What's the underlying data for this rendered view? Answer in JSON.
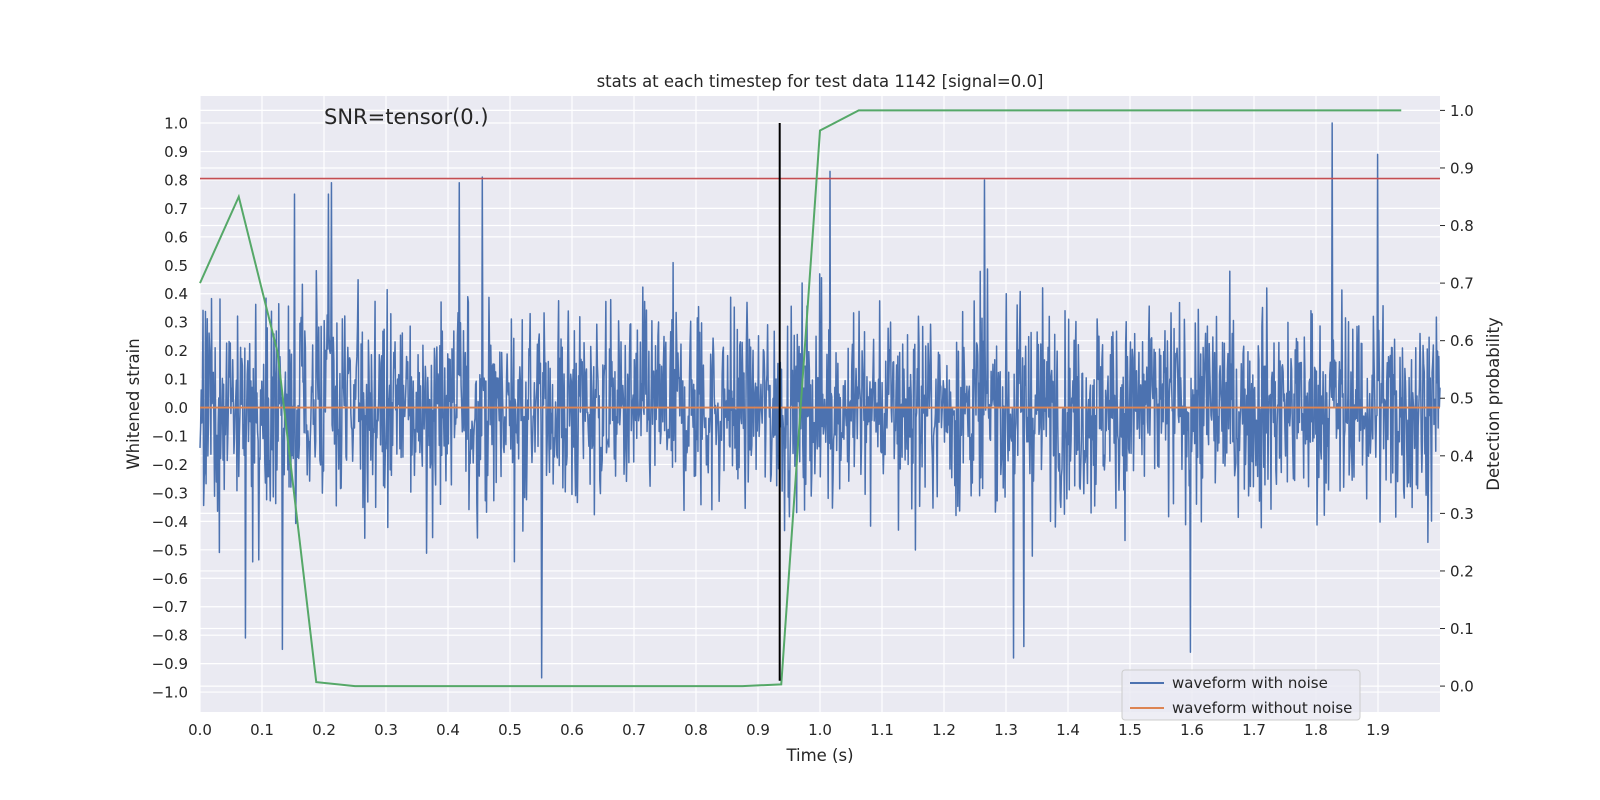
{
  "chart_data": {
    "type": "line",
    "title": "stats at each timestep for test data 1142 [signal=0.0]",
    "annotation": "SNR=tensor(0.)",
    "xlabel": "Time (s)",
    "ylabel_left": "Whitened strain",
    "ylabel_right": "Detection probability",
    "xlim": [
      0.0,
      2.0
    ],
    "ylim_left": [
      -1.07,
      1.095
    ],
    "ylim_right": [
      -0.045,
      1.025
    ],
    "x_ticks": [
      "0.0",
      "0.1",
      "0.2",
      "0.3",
      "0.4",
      "0.5",
      "0.6",
      "0.7",
      "0.8",
      "0.9",
      "1.0",
      "1.1",
      "1.2",
      "1.3",
      "1.4",
      "1.5",
      "1.6",
      "1.7",
      "1.8",
      "1.9"
    ],
    "y_left_ticks": [
      "1.0",
      "0.9",
      "0.8",
      "0.7",
      "0.6",
      "0.5",
      "0.4",
      "0.3",
      "0.2",
      "0.1",
      "0.0",
      "−0.1",
      "−0.2",
      "−0.3",
      "−0.4",
      "−0.5",
      "−0.6",
      "−0.7",
      "−0.8",
      "−0.9",
      "−1.0"
    ],
    "y_right_ticks": [
      "1.0",
      "0.9",
      "0.8",
      "0.7",
      "0.6",
      "0.5",
      "0.4",
      "0.3",
      "0.2",
      "0.1",
      "0.0"
    ],
    "threshold": {
      "axis": "left",
      "value": 0.805,
      "color": "#c44e52"
    },
    "marker_vline": {
      "x": 0.935,
      "y_from": -0.96,
      "y_to": 1.0,
      "color": "#000000"
    },
    "series": [
      {
        "name": "waveform with noise",
        "axis": "left",
        "color": "#4c72b0",
        "kind": "noise",
        "x_range": [
          0.0,
          2.0
        ],
        "typical_amplitude": 0.25,
        "peaks": [
          {
            "x": 0.073,
            "y": -0.81
          },
          {
            "x": 0.133,
            "y": -0.85
          },
          {
            "x": 0.152,
            "y": 0.75
          },
          {
            "x": 0.207,
            "y": 0.75
          },
          {
            "x": 0.212,
            "y": 0.79
          },
          {
            "x": 0.418,
            "y": 0.79
          },
          {
            "x": 0.455,
            "y": 0.81
          },
          {
            "x": 0.551,
            "y": -0.95
          },
          {
            "x": 1.016,
            "y": 0.83
          },
          {
            "x": 1.265,
            "y": 0.8
          },
          {
            "x": 1.312,
            "y": -0.88
          },
          {
            "x": 1.329,
            "y": -0.84
          },
          {
            "x": 1.597,
            "y": -0.86
          },
          {
            "x": 1.826,
            "y": 1.0
          },
          {
            "x": 1.899,
            "y": 0.89
          }
        ]
      },
      {
        "name": "waveform without noise",
        "axis": "left",
        "color": "#dd8452",
        "x": [
          0.0,
          2.0
        ],
        "y": [
          0.0,
          0.0
        ]
      },
      {
        "name": "detection probability",
        "axis": "right",
        "color": "#55a868",
        "x": [
          0.0,
          0.0625,
          0.125,
          0.1875,
          0.25,
          0.3125,
          0.375,
          0.4375,
          0.5,
          0.5625,
          0.625,
          0.6875,
          0.75,
          0.8125,
          0.875,
          0.9375,
          1.0,
          1.0625,
          1.125,
          1.1875,
          1.25,
          1.3125,
          1.375,
          1.4375,
          1.5,
          1.5625,
          1.625,
          1.6875,
          1.75,
          1.8125,
          1.875,
          1.9375
        ],
        "y": [
          0.7,
          0.85,
          0.58,
          0.007,
          0.0,
          0.0,
          0.0,
          0.0,
          0.0,
          0.0,
          0.0,
          0.0,
          0.0,
          0.0,
          0.0,
          0.003,
          0.965,
          1.0,
          1.0,
          1.0,
          1.0,
          1.0,
          1.0,
          1.0,
          1.0,
          1.0,
          1.0,
          1.0,
          1.0,
          1.0,
          1.0,
          1.0
        ]
      }
    ],
    "legend": {
      "placement": "lower-right",
      "entries": [
        "waveform with noise",
        "waveform without noise"
      ]
    },
    "grid": true,
    "style": {
      "axes_bg": "#eaeaf2",
      "grid_color": "#ffffff"
    }
  }
}
